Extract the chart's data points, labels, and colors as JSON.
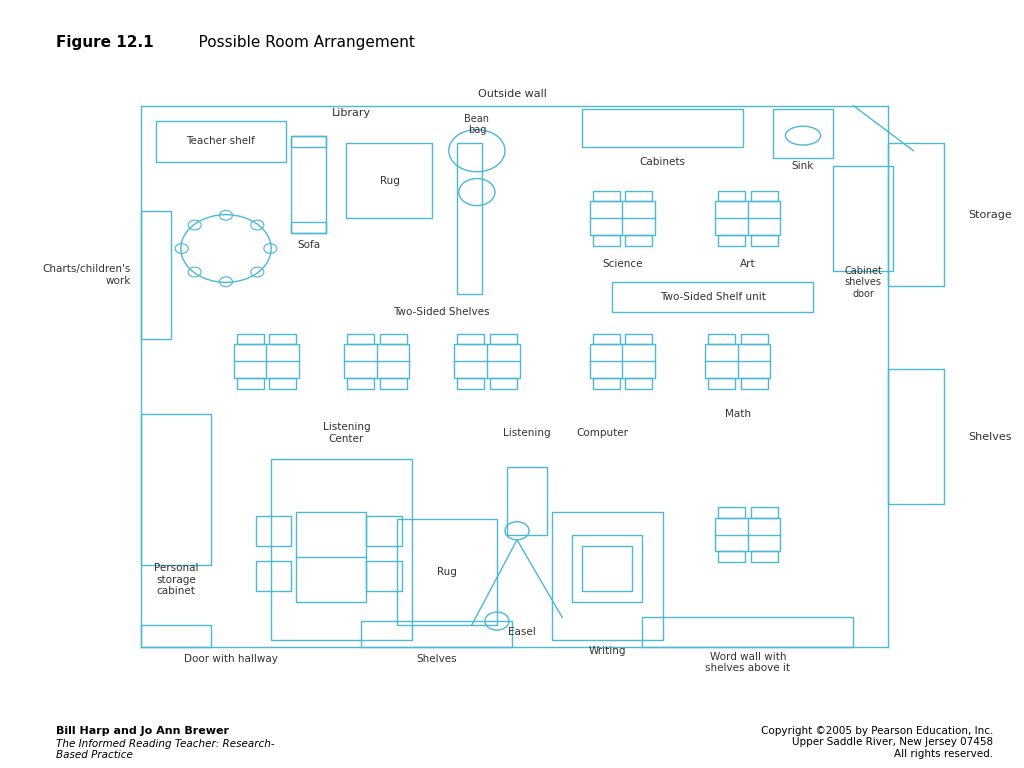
{
  "title_bold": "Figure 12.1",
  "title_rest": "    Possible Room Arrangement",
  "line_color": "#4BB8D4",
  "bg_color": "#FFFFFF",
  "text_color": "#333333",
  "fig_width": 10.24,
  "fig_height": 7.68,
  "author_text": "Bill Harp and Jo Ann Brewer",
  "book_text": "The Informed Reading Teacher: Research-\nBased Practice",
  "copyright_text": "Copyright ©2005 by Pearson Education, Inc.\nUpper Saddle River, New Jersey 07458\nAll rights reserved."
}
